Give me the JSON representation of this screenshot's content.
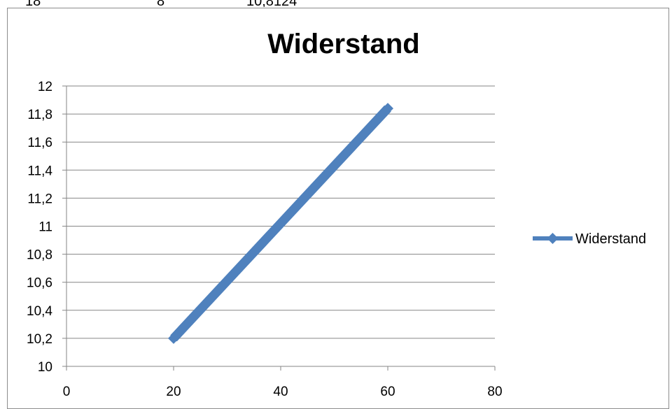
{
  "top_strip": {
    "cells": [
      "18",
      "8",
      "10,8124"
    ]
  },
  "chart_data": {
    "type": "line",
    "title": "Widerstand",
    "xlabel": "",
    "ylabel": "",
    "xlim": [
      0,
      80
    ],
    "ylim": [
      10,
      12
    ],
    "x_ticks": [
      "0",
      "20",
      "40",
      "60",
      "80"
    ],
    "y_ticks": [
      "10",
      "10,2",
      "10,4",
      "10,6",
      "10,8",
      "11",
      "11,2",
      "11,4",
      "11,6",
      "11,8",
      "12"
    ],
    "grid": true,
    "legend_position": "right",
    "series": [
      {
        "name": "Widerstand",
        "color": "#4F81BD",
        "marker": "diamond",
        "points": [
          [
            20,
            10.2
          ],
          [
            60,
            11.84
          ]
        ]
      }
    ]
  }
}
